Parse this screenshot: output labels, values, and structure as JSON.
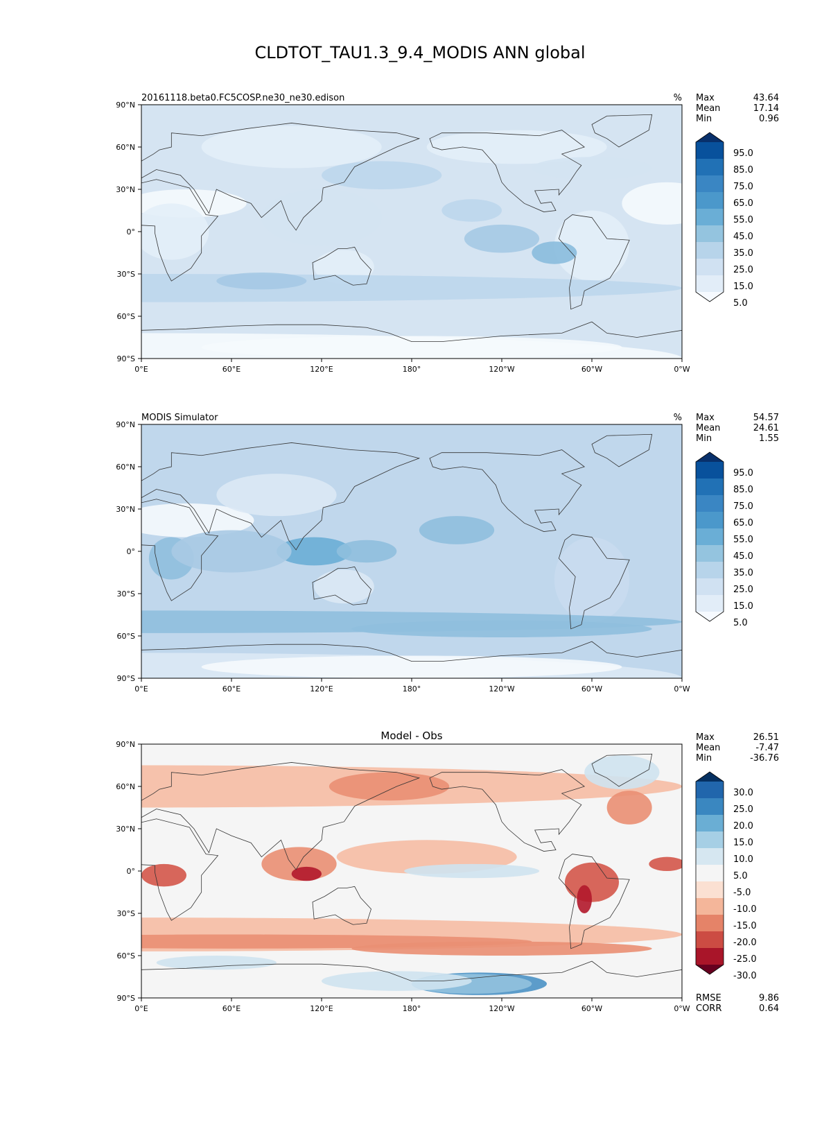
{
  "figure": {
    "title": "CLDTOT_TAU1.3_9.4_MODIS ANN global"
  },
  "chart_data": [
    {
      "type": "heatmap",
      "title": "20161118.beta0.FC5COSP.ne30_ne30.edison",
      "units": "%",
      "map_projection": "PlateCarree, central longitude 180",
      "x_ticks": [
        "0°E",
        "60°E",
        "120°E",
        "180°",
        "120°W",
        "60°W",
        "0°W"
      ],
      "y_ticks": [
        "90°N",
        "60°N",
        "30°N",
        "0°",
        "30°S",
        "60°S",
        "90°S"
      ],
      "xlim": [
        0,
        360
      ],
      "ylim": [
        -90,
        90
      ],
      "stats": [
        {
          "label": "Max",
          "value": "43.64"
        },
        {
          "label": "Mean",
          "value": "17.14"
        },
        {
          "label": "Min",
          "value": "0.96"
        }
      ],
      "colorbar": {
        "labels": [
          "95.0",
          "85.0",
          "75.0",
          "65.0",
          "55.0",
          "45.0",
          "35.0",
          "25.0",
          "15.0",
          "5.0"
        ],
        "colors": [
          "#08306b",
          "#08519c",
          "#2171b5",
          "#3a86c3",
          "#4b98cb",
          "#6aaed6",
          "#94c4df",
          "#b7d4ea",
          "#d0e1f2",
          "#e2edf8",
          "#f6faff"
        ],
        "extend": "both"
      },
      "field": {
        "base": "#d5e4f2",
        "colors": [
          "#f5f9fd",
          "#e3eef8",
          "#d4e3f2",
          "#bcd6ec",
          "#a5c9e4",
          "#89bbdd"
        ]
      }
    },
    {
      "type": "heatmap",
      "title": "MODIS Simulator",
      "units": "%",
      "map_projection": "PlateCarree, central longitude 180",
      "x_ticks": [
        "0°E",
        "60°E",
        "120°E",
        "180°",
        "120°W",
        "60°W",
        "0°W"
      ],
      "y_ticks": [
        "90°N",
        "60°N",
        "30°N",
        "0°",
        "30°S",
        "60°S",
        "90°S"
      ],
      "xlim": [
        0,
        360
      ],
      "ylim": [
        -90,
        90
      ],
      "stats": [
        {
          "label": "Max",
          "value": "54.57"
        },
        {
          "label": "Mean",
          "value": "24.61"
        },
        {
          "label": "Min",
          "value": "1.55"
        }
      ],
      "colorbar": {
        "labels": [
          "95.0",
          "85.0",
          "75.0",
          "65.0",
          "55.0",
          "45.0",
          "35.0",
          "25.0",
          "15.0",
          "5.0"
        ],
        "colors": [
          "#08306b",
          "#08519c",
          "#2171b5",
          "#3a86c3",
          "#4b98cb",
          "#6aaed6",
          "#94c4df",
          "#b7d4ea",
          "#d0e1f2",
          "#e2edf8",
          "#f6faff"
        ],
        "extend": "both"
      },
      "field": {
        "base": "#c0d7ec",
        "colors": [
          "#f5f9fd",
          "#dce9f5",
          "#c9dcef",
          "#a8cae4",
          "#8fbfde",
          "#6aaed6"
        ]
      }
    },
    {
      "type": "heatmap",
      "title": "Model - Obs",
      "map_projection": "PlateCarree, central longitude 180",
      "x_ticks": [
        "0°E",
        "60°E",
        "120°E",
        "180°",
        "120°W",
        "60°W",
        "0°W"
      ],
      "y_ticks": [
        "90°N",
        "60°N",
        "30°N",
        "0°",
        "30°S",
        "60°S",
        "90°S"
      ],
      "xlim": [
        0,
        360
      ],
      "ylim": [
        -90,
        90
      ],
      "stats": [
        {
          "label": "Max",
          "value": "26.51"
        },
        {
          "label": "Mean",
          "value": "-7.47"
        },
        {
          "label": "Min",
          "value": "-36.76"
        }
      ],
      "extra_stats": [
        {
          "label": "RMSE",
          "value": "9.86"
        },
        {
          "label": "CORR",
          "value": "0.64"
        }
      ],
      "colorbar": {
        "labels": [
          "30.0",
          "25.0",
          "20.0",
          "15.0",
          "10.0",
          "5.0",
          "-5.0",
          "-10.0",
          "-15.0",
          "-20.0",
          "-25.0",
          "-30.0"
        ],
        "colors": [
          "#053061",
          "#2166ac",
          "#3a87c0",
          "#6aaed4",
          "#a6cfe5",
          "#d6e7f1",
          "#f5f5f5",
          "#fbe0d2",
          "#f4b69a",
          "#e58368",
          "#cc4c43",
          "#a91529",
          "#67001f"
        ],
        "extend": "both"
      },
      "field": {
        "base": "#f5f5f5",
        "colors": [
          "#fce3d6",
          "#f6bda4",
          "#ea8f73",
          "#d4564a",
          "#b2182b",
          "#cfe3ef",
          "#92c2de",
          "#4b92c5"
        ]
      }
    }
  ]
}
